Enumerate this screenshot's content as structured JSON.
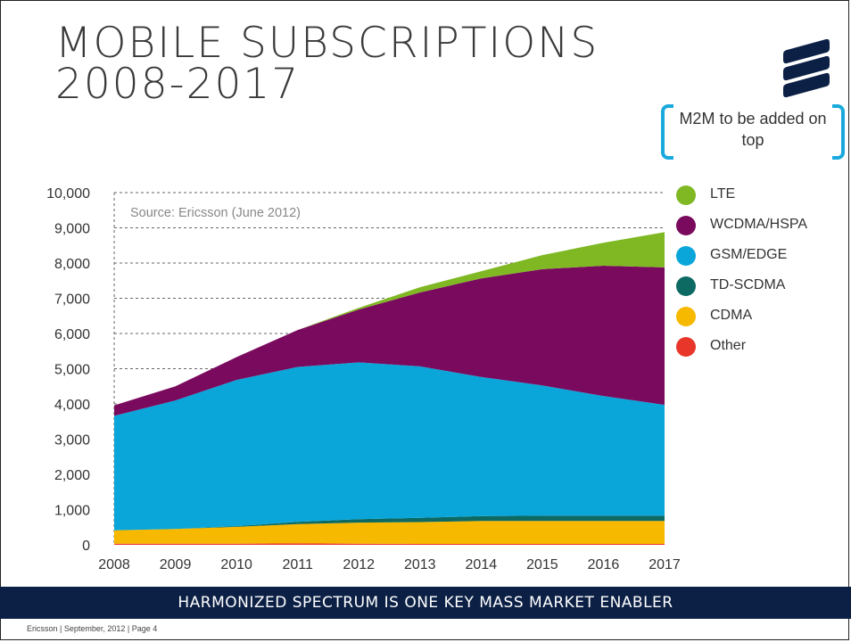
{
  "slide": {
    "title_line1": "MOBILE SUBSCRIPTIONS",
    "title_line2": "2008-2017",
    "m2m_note": "M2M to be added on top",
    "banner": "HARMONIZED SPECTRUM IS ONE KEY MASS MARKET ENABLER",
    "footer": "Ericsson  |  September, 2012  |  Page 4",
    "colors": {
      "accent": "#1aa9dc",
      "banner": "#0c2045"
    }
  },
  "chart_data": {
    "type": "area",
    "stacked": true,
    "annotation": "Source: Ericsson (June 2012)",
    "x": [
      2008,
      2009,
      2010,
      2011,
      2012,
      2013,
      2014,
      2015,
      2016,
      2017
    ],
    "ylim": [
      0,
      10000
    ],
    "yticks": [
      0,
      1000,
      2000,
      3000,
      4000,
      5000,
      6000,
      7000,
      8000,
      9000,
      10000
    ],
    "ytick_labels": [
      "0",
      "1,000",
      "2,000",
      "3,000",
      "4,000",
      "5,000",
      "6,000",
      "7,000",
      "8,000",
      "9,000",
      "10,000"
    ],
    "grid": "dashed horizontal",
    "legend_position": "right",
    "series": [
      {
        "name": "Other",
        "color": "#e8372a",
        "values": [
          30,
          30,
          30,
          40,
          30,
          25,
          25,
          25,
          25,
          25
        ]
      },
      {
        "name": "CDMA",
        "color": "#f7b800",
        "values": [
          380,
          420,
          480,
          550,
          600,
          620,
          650,
          650,
          650,
          650
        ]
      },
      {
        "name": "TD-SCDMA",
        "color": "#0c6a62",
        "values": [
          0,
          0,
          20,
          60,
          100,
          120,
          140,
          150,
          150,
          150
        ]
      },
      {
        "name": "GSM/EDGE",
        "color": "#0aa6d9",
        "values": [
          3250,
          3650,
          4150,
          4400,
          4450,
          4300,
          3950,
          3700,
          3400,
          3150
        ]
      },
      {
        "name": "WCDMA/HSPA",
        "color": "#7a0a5e",
        "values": [
          300,
          400,
          650,
          1050,
          1500,
          2100,
          2800,
          3300,
          3700,
          3900
        ]
      },
      {
        "name": "LTE",
        "color": "#7fb823",
        "values": [
          0,
          0,
          0,
          0,
          50,
          150,
          200,
          400,
          650,
          1000
        ]
      }
    ],
    "legend_order": [
      "LTE",
      "WCDMA/HSPA",
      "GSM/EDGE",
      "TD-SCDMA",
      "CDMA",
      "Other"
    ]
  }
}
